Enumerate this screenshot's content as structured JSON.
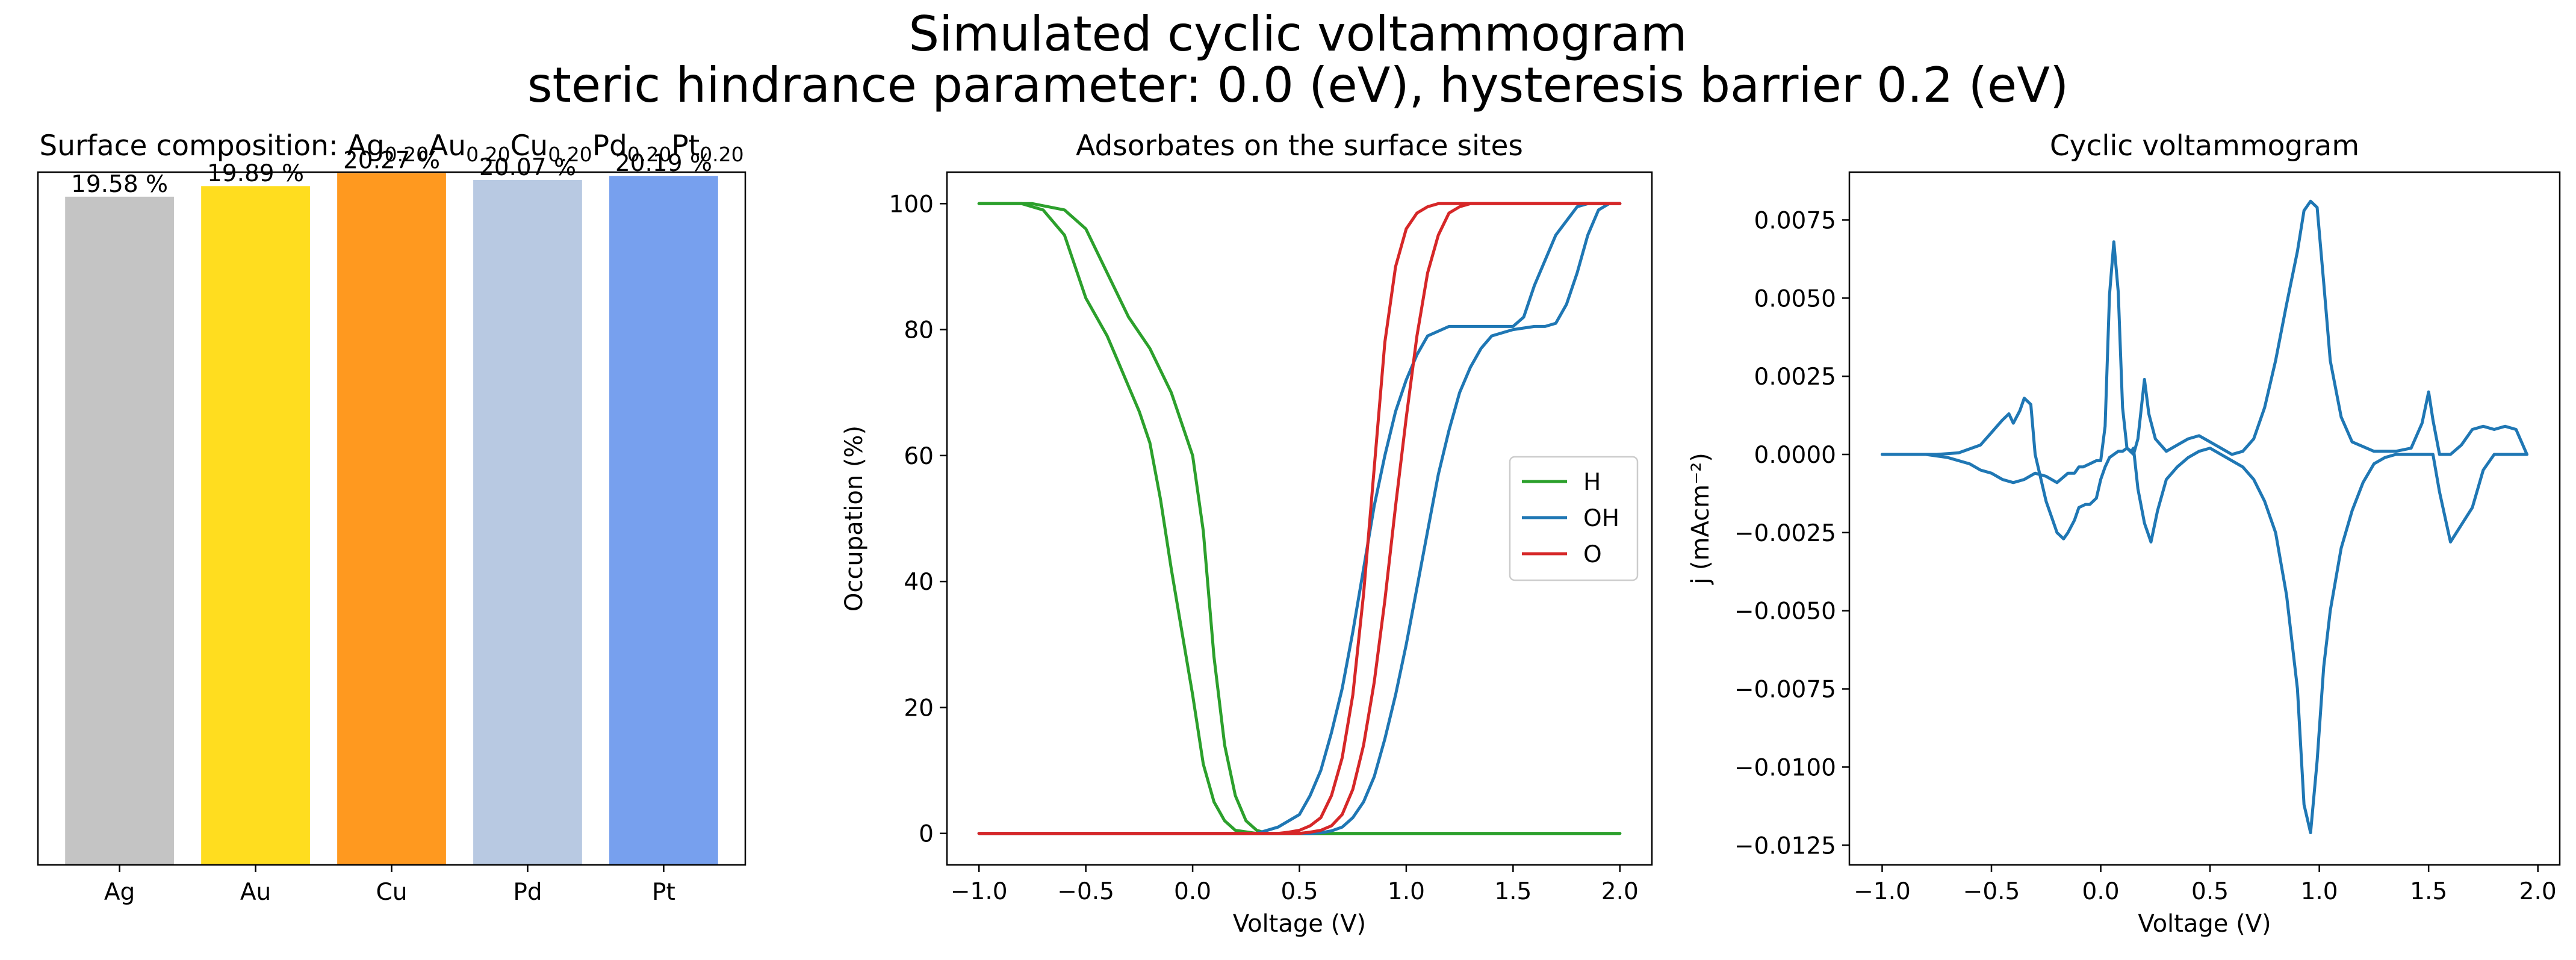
{
  "figure": {
    "title_line1": "Simulated cyclic voltammogram",
    "title_line2": "steric hindrance parameter: 0.0 (eV), hysteresis barrier 0.2 (eV)"
  },
  "chart_data": [
    {
      "type": "bar",
      "title": "Surface composition: Ag0.20Au0.20Cu0.20Pd0.20Pt0.20",
      "title_parts": [
        {
          "text": "Surface composition: ",
          "sub": false
        },
        {
          "text": "Ag",
          "sub": false
        },
        {
          "text": "0.20",
          "sub": true
        },
        {
          "text": "Au",
          "sub": false
        },
        {
          "text": "0.20",
          "sub": true
        },
        {
          "text": "Cu",
          "sub": false
        },
        {
          "text": "0.20",
          "sub": true
        },
        {
          "text": "Pd",
          "sub": false
        },
        {
          "text": "0.20",
          "sub": true
        },
        {
          "text": "Pt",
          "sub": false
        },
        {
          "text": "0.20",
          "sub": true
        }
      ],
      "categories": [
        "Ag",
        "Au",
        "Cu",
        "Pd",
        "Pt"
      ],
      "values": [
        19.58,
        19.89,
        20.27,
        20.07,
        20.19
      ],
      "value_labels": [
        "19.58 %",
        "19.89 %",
        "20.27 %",
        "20.07 %",
        "20.19 %"
      ],
      "colors": [
        "#c4c4c4",
        "#ffdd1f",
        "#ff991f",
        "#b8c9e2",
        "#77a0ee"
      ],
      "ylim": [
        0,
        20.3
      ],
      "xlabel": "",
      "ylabel": ""
    },
    {
      "type": "line",
      "title": "Adsorbates on the surface sites",
      "xlabel": "Voltage (V)",
      "ylabel": "Occupation (%)",
      "xlim": [
        -1.15,
        2.15
      ],
      "ylim": [
        -5,
        105
      ],
      "xticks": [
        -1.0,
        -0.5,
        0.0,
        0.5,
        1.0,
        1.5,
        2.0
      ],
      "xtick_labels": [
        "−1.0",
        "−0.5",
        "0.0",
        "0.5",
        "1.0",
        "1.5",
        "2.0"
      ],
      "yticks": [
        0,
        20,
        40,
        60,
        80,
        100
      ],
      "ytick_labels": [
        "0",
        "20",
        "40",
        "60",
        "80",
        "100"
      ],
      "legend": {
        "placement": "center-right",
        "entries": [
          "H",
          "OH",
          "O"
        ]
      },
      "series": [
        {
          "name": "H",
          "color": "#2ca02c",
          "x": [
            -1.0,
            -0.75,
            -0.6,
            -0.5,
            -0.4,
            -0.3,
            -0.2,
            -0.1,
            0.0,
            0.05,
            0.1,
            0.15,
            0.2,
            0.25,
            0.3,
            0.35,
            0.5,
            1.0,
            1.5,
            2.0
          ],
          "y": [
            100,
            100,
            99,
            96,
            89,
            82,
            77,
            70,
            60,
            48,
            28,
            14,
            6,
            2,
            0.5,
            0,
            0,
            0,
            0,
            0
          ]
        },
        {
          "name": "H",
          "color": "#2ca02c",
          "x": [
            2.0,
            1.0,
            0.3,
            0.2,
            0.15,
            0.1,
            0.05,
            0.0,
            -0.05,
            -0.1,
            -0.15,
            -0.2,
            -0.25,
            -0.3,
            -0.35,
            -0.4,
            -0.5,
            -0.6,
            -0.7,
            -0.8,
            -1.0
          ],
          "y": [
            0,
            0,
            0,
            0.5,
            2,
            5,
            11,
            22,
            32,
            42,
            53,
            62,
            67,
            71,
            75,
            79,
            85,
            95,
            99,
            100,
            100
          ]
        },
        {
          "name": "OH",
          "color": "#1f77b4",
          "x": [
            -1.0,
            0.3,
            0.4,
            0.5,
            0.55,
            0.6,
            0.65,
            0.7,
            0.75,
            0.8,
            0.85,
            0.9,
            0.95,
            1.0,
            1.05,
            1.1,
            1.2,
            1.3,
            1.4,
            1.45,
            1.5,
            1.55,
            1.6,
            1.7,
            1.8,
            1.85,
            1.9,
            1.95,
            2.0
          ],
          "y": [
            0,
            0,
            1,
            3,
            6,
            10,
            16,
            23,
            32,
            42,
            52,
            60,
            67,
            72,
            76,
            79,
            80.5,
            80.5,
            80.5,
            80.5,
            80.5,
            82,
            87,
            95,
            99.5,
            100,
            100,
            100,
            100
          ]
        },
        {
          "name": "OH",
          "color": "#1f77b4",
          "x": [
            2.0,
            1.95,
            1.9,
            1.85,
            1.8,
            1.75,
            1.7,
            1.65,
            1.6,
            1.5,
            1.4,
            1.35,
            1.3,
            1.25,
            1.2,
            1.15,
            1.1,
            1.05,
            1.0,
            0.95,
            0.9,
            0.85,
            0.8,
            0.75,
            0.7,
            0.65,
            0.6,
            0.55,
            0.5,
            0.45,
            -1.0
          ],
          "y": [
            100,
            100,
            99,
            95,
            89,
            84,
            81,
            80.5,
            80.5,
            80,
            79,
            77,
            74,
            70,
            64,
            57,
            48,
            39,
            30,
            22,
            15,
            9,
            5,
            2.5,
            1,
            0.4,
            0.1,
            0,
            0,
            0,
            0
          ]
        },
        {
          "name": "O",
          "color": "#d62728",
          "x": [
            -1.0,
            0.4,
            0.45,
            0.5,
            0.55,
            0.6,
            0.65,
            0.7,
            0.75,
            0.8,
            0.85,
            0.9,
            0.95,
            1.0,
            1.05,
            1.1,
            1.15,
            1.2,
            1.3,
            2.0
          ],
          "y": [
            0,
            0,
            0.2,
            0.5,
            1.2,
            2.5,
            6,
            12,
            22,
            38,
            58,
            78,
            90,
            96,
            98.5,
            99.5,
            100,
            100,
            100,
            100
          ]
        },
        {
          "name": "O",
          "color": "#d62728",
          "x": [
            2.0,
            1.3,
            1.25,
            1.2,
            1.15,
            1.1,
            1.05,
            1.0,
            0.95,
            0.9,
            0.85,
            0.8,
            0.75,
            0.7,
            0.65,
            0.6,
            0.55,
            0.5,
            0.45,
            -1.0
          ],
          "y": [
            100,
            100,
            99.5,
            98.5,
            95,
            89,
            79,
            66,
            52,
            37,
            24,
            14,
            7,
            3,
            1.2,
            0.5,
            0.2,
            0,
            0,
            0
          ]
        }
      ]
    },
    {
      "type": "line",
      "title": "Cyclic voltammogram",
      "xlabel": "Voltage (V)",
      "ylabel": "j (mAcm⁻²)",
      "xlim": [
        -1.15,
        2.1
      ],
      "ylim": [
        -0.01313,
        0.00903
      ],
      "xticks": [
        -1.0,
        -0.5,
        0.0,
        0.5,
        1.0,
        1.5,
        2.0
      ],
      "xtick_labels": [
        "−1.0",
        "−0.5",
        "0.0",
        "0.5",
        "1.0",
        "1.5",
        "2.0"
      ],
      "yticks": [
        0.0075,
        0.005,
        0.0025,
        0.0,
        -0.0025,
        -0.005,
        -0.0075,
        -0.01,
        -0.0125
      ],
      "ytick_labels": [
        "0.0075",
        "0.0050",
        "0.0025",
        "0.0000",
        "−0.0025",
        "−0.0050",
        "−0.0075",
        "−0.0100",
        "−0.0125"
      ],
      "series": [
        {
          "name": "",
          "color": "#1f77b4",
          "x": [
            -1.0,
            -0.75,
            -0.65,
            -0.55,
            -0.5,
            -0.45,
            -0.42,
            -0.4,
            -0.37,
            -0.35,
            -0.32,
            -0.3,
            -0.25,
            -0.22,
            -0.2,
            -0.17,
            -0.15,
            -0.12,
            -0.1,
            -0.07,
            -0.05,
            -0.02,
            0.0,
            0.02,
            0.04,
            0.06,
            0.08,
            0.1,
            0.12,
            0.14,
            0.15,
            0.17,
            0.2,
            0.23,
            0.26,
            0.3,
            0.35,
            0.4,
            0.45,
            0.5,
            0.55,
            0.6,
            0.65,
            0.7,
            0.75,
            0.8,
            0.85,
            0.9,
            0.93,
            0.96,
            0.99,
            1.02,
            1.05,
            1.1,
            1.15,
            1.2,
            1.25,
            1.3,
            1.35,
            1.4,
            1.43,
            1.47,
            1.5,
            1.52,
            1.55,
            1.6,
            1.7,
            1.75,
            1.8,
            1.85,
            1.9,
            1.95
          ],
          "y": [
            0.0,
            0.0,
            5e-05,
            0.0003,
            0.0007,
            0.0011,
            0.0013,
            0.001,
            0.0014,
            0.0018,
            0.0016,
            0.0,
            -0.0015,
            -0.0021,
            -0.0025,
            -0.0027,
            -0.0025,
            -0.0021,
            -0.0017,
            -0.0016,
            -0.0016,
            -0.0014,
            -0.0008,
            -0.0004,
            -0.0001,
            0.0,
            0.0001,
            0.0001,
            0.0002,
            0.0001,
            0.0002,
            -0.0011,
            -0.0022,
            -0.0028,
            -0.0018,
            -0.0008,
            -0.0004,
            -0.0001,
            0.0001,
            0.0002,
            0.0,
            -0.0002,
            -0.0004,
            -0.0008,
            -0.0015,
            -0.0025,
            -0.0045,
            -0.0075,
            -0.0112,
            -0.0121,
            -0.0098,
            -0.0068,
            -0.005,
            -0.003,
            -0.0018,
            -0.0009,
            -0.0003,
            -0.0001,
            0.0,
            0.0,
            0.0,
            0.0,
            0.0,
            0.0,
            -0.0012,
            -0.0028,
            -0.0017,
            -0.0005,
            0.0,
            0.0,
            0.0,
            0.0
          ]
        },
        {
          "name": "",
          "color": "#1f77b4",
          "x": [
            1.95,
            1.9,
            1.85,
            1.8,
            1.75,
            1.7,
            1.65,
            1.6,
            1.55,
            1.52,
            1.5,
            1.47,
            1.42,
            1.35,
            1.25,
            1.15,
            1.1,
            1.05,
            1.02,
            0.99,
            0.96,
            0.93,
            0.9,
            0.85,
            0.8,
            0.75,
            0.7,
            0.65,
            0.6,
            0.55,
            0.5,
            0.45,
            0.4,
            0.35,
            0.3,
            0.25,
            0.22,
            0.2,
            0.17,
            0.15,
            0.12,
            0.1,
            0.08,
            0.06,
            0.04,
            0.02,
            0.0,
            -0.02,
            -0.05,
            -0.08,
            -0.1,
            -0.12,
            -0.15,
            -0.2,
            -0.25,
            -0.3,
            -0.35,
            -0.4,
            -0.45,
            -0.5,
            -0.55,
            -0.6,
            -0.7,
            -0.8,
            -1.0
          ],
          "y": [
            0.0,
            0.0008,
            0.0009,
            0.0008,
            0.0009,
            0.0008,
            0.0003,
            0.0,
            0.0,
            0.0011,
            0.002,
            0.001,
            0.0002,
            0.0001,
            0.0001,
            0.0004,
            0.0012,
            0.003,
            0.0055,
            0.0079,
            0.0081,
            0.0078,
            0.0065,
            0.0048,
            0.003,
            0.0015,
            0.0005,
            0.0001,
            0.0,
            0.0002,
            0.0004,
            0.0006,
            0.0005,
            0.0003,
            0.0001,
            0.0005,
            0.0013,
            0.0024,
            0.0005,
            0.0,
            0.0002,
            0.0015,
            0.0052,
            0.0068,
            0.0051,
            0.0009,
            -0.0002,
            -0.0002,
            -0.0003,
            -0.0004,
            -0.0004,
            -0.0006,
            -0.0006,
            -0.0009,
            -0.0007,
            -0.0006,
            -0.0008,
            -0.0009,
            -0.0008,
            -0.0006,
            -0.0005,
            -0.0003,
            -0.0001,
            0.0,
            0.0
          ]
        }
      ]
    }
  ]
}
